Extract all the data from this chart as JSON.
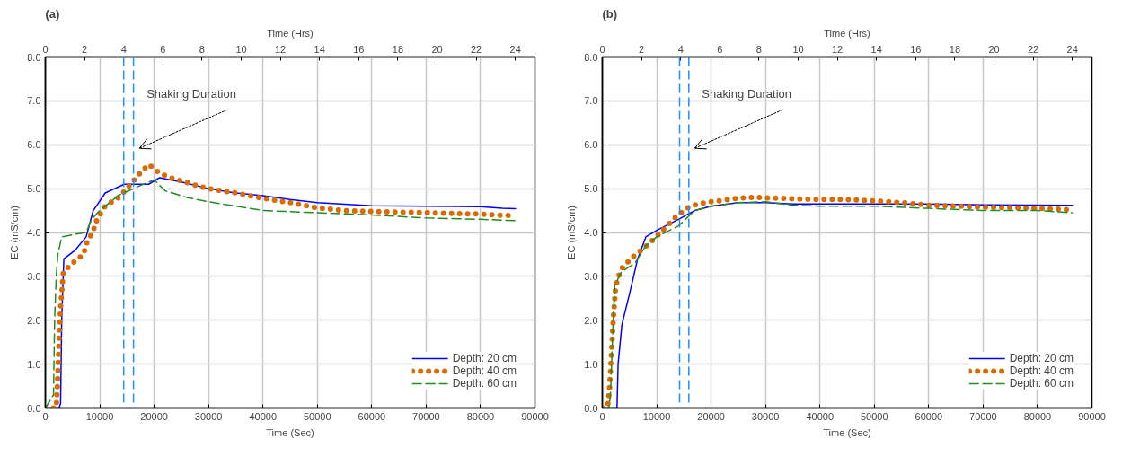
{
  "chart_data": [
    {
      "type": "line",
      "title": "(a)",
      "xlabel": "Time (Sec)",
      "x2label": "Time (Hrs)",
      "ylabel": "EC (mS/cm)",
      "xlim": [
        0,
        90000
      ],
      "xticks": [
        0,
        10000,
        20000,
        30000,
        40000,
        50000,
        60000,
        70000,
        80000,
        90000
      ],
      "x2lim": [
        0,
        25
      ],
      "x2ticks": [
        0,
        2,
        4,
        6,
        8,
        10,
        12,
        14,
        16,
        18,
        20,
        22,
        24
      ],
      "ylim": [
        0,
        8
      ],
      "yticks": [
        {
          "value": 0,
          "label": "0.0"
        },
        {
          "value": 1,
          "label": "1.0"
        },
        {
          "value": 2,
          "label": "2.0"
        },
        {
          "value": 3,
          "label": "3.0"
        },
        {
          "value": 4,
          "label": "4.0"
        },
        {
          "value": 5,
          "label": "5.0"
        },
        {
          "value": 6,
          "label": "6.0"
        },
        {
          "value": 7,
          "label": "7.0"
        },
        {
          "value": 8,
          "label": "8.0"
        }
      ],
      "grid": true,
      "legend": "bottom right",
      "ref_lines": [
        {
          "axis": "x",
          "value": 14400,
          "color": "#1e90ff",
          "line_style": "dashed"
        },
        {
          "axis": "x",
          "value": 16200,
          "color": "#1e90ff",
          "line_style": "dashed"
        }
      ],
      "annotations": [
        "Shaking Duration"
      ],
      "series": [
        {
          "name": "Depth: 20 cm",
          "color": "#0000ff",
          "line_style": "solid",
          "x": [
            0,
            2500,
            2800,
            3000,
            3400,
            5500,
            7500,
            8800,
            11000,
            14500,
            19000,
            21000,
            25000,
            30000,
            35000,
            40000,
            45000,
            50000,
            60000,
            70000,
            80000,
            84000,
            86400
          ],
          "values": [
            0,
            0,
            0.1,
            2.0,
            3.4,
            3.6,
            3.9,
            4.5,
            4.9,
            5.1,
            5.1,
            5.25,
            5.15,
            5.0,
            4.9,
            4.84,
            4.75,
            4.68,
            4.61,
            4.6,
            4.59,
            4.55,
            4.54
          ]
        },
        {
          "name": "Depth: 40 cm",
          "color": "#d96b00",
          "line_style": "dotted",
          "x": [
            0,
            2000,
            2200,
            2500,
            2800,
            3300,
            5000,
            7000,
            7700,
            8700,
            9500,
            11000,
            13500,
            15000,
            17000,
            19000,
            21000,
            23000,
            27000,
            30000,
            35000,
            40000,
            45000,
            50000,
            55000,
            60000,
            70000,
            80000,
            86000
          ],
          "values": [
            0,
            0,
            0.5,
            1.5,
            2.3,
            3.1,
            3.3,
            3.5,
            3.8,
            4.0,
            4.3,
            4.6,
            4.8,
            5.0,
            5.3,
            5.55,
            5.35,
            5.25,
            5.1,
            5.0,
            4.9,
            4.78,
            4.68,
            4.56,
            4.5,
            4.48,
            4.45,
            4.42,
            4.38
          ]
        },
        {
          "name": "Depth: 60 cm",
          "color": "#228b22",
          "line_style": "dashed",
          "x": [
            0,
            1500,
            1700,
            2000,
            2300,
            3000,
            5000,
            7500,
            8500,
            10000,
            13500,
            18000,
            20000,
            22000,
            26000,
            30000,
            35000,
            40000,
            50000,
            60000,
            70000,
            80000,
            86400
          ],
          "values": [
            0,
            0.3,
            2.0,
            3.0,
            3.5,
            3.9,
            3.95,
            4.0,
            4.3,
            4.5,
            4.85,
            5.1,
            5.2,
            4.95,
            4.8,
            4.7,
            4.6,
            4.5,
            4.45,
            4.4,
            4.33,
            4.3,
            4.27
          ]
        }
      ]
    },
    {
      "type": "line",
      "title": "(b)",
      "xlabel": "Time (Sec)",
      "x2label": "Time (Hrs)",
      "ylabel": "EC (mS/cm)",
      "xlim": [
        0,
        90000
      ],
      "xticks": [
        0,
        10000,
        20000,
        30000,
        40000,
        50000,
        60000,
        70000,
        80000,
        90000
      ],
      "x2lim": [
        0,
        25
      ],
      "x2ticks": [
        0,
        2,
        4,
        6,
        8,
        10,
        12,
        14,
        16,
        18,
        20,
        22,
        24
      ],
      "ylim": [
        0,
        8
      ],
      "yticks": [
        {
          "value": 0,
          "label": "0.0"
        },
        {
          "value": 1,
          "label": "1.0"
        },
        {
          "value": 2,
          "label": "2.0"
        },
        {
          "value": 3,
          "label": "3.0"
        },
        {
          "value": 4,
          "label": "4.0"
        },
        {
          "value": 5,
          "label": "5.0"
        },
        {
          "value": 6,
          "label": "6.0"
        },
        {
          "value": 7,
          "label": "7.0"
        },
        {
          "value": 8,
          "label": "8.0"
        }
      ],
      "grid": true,
      "legend": "bottom right",
      "ref_lines": [
        {
          "axis": "x",
          "value": 14200,
          "color": "#1e90ff",
          "line_style": "dashed"
        },
        {
          "axis": "x",
          "value": 15900,
          "color": "#1e90ff",
          "line_style": "dashed"
        }
      ],
      "annotations": [
        "Shaking Duration"
      ],
      "series": [
        {
          "name": "Depth: 20 cm",
          "color": "#0000ff",
          "line_style": "solid",
          "x": [
            0,
            2700,
            2900,
            3600,
            5000,
            6500,
            8000,
            10000,
            14000,
            17000,
            20000,
            25000,
            30000,
            35000,
            40000,
            50000,
            60000,
            70000,
            86400
          ],
          "values": [
            0,
            0,
            1.0,
            1.9,
            2.6,
            3.4,
            3.9,
            4.05,
            4.3,
            4.5,
            4.6,
            4.68,
            4.68,
            4.65,
            4.65,
            4.65,
            4.65,
            4.63,
            4.62
          ]
        },
        {
          "name": "Depth: 40 cm",
          "color": "#d96b00",
          "line_style": "dotted",
          "x": [
            0,
            1000,
            1300,
            1700,
            2000,
            2400,
            2800,
            3700,
            5700,
            7700,
            9500,
            11500,
            13500,
            15500,
            17500,
            20000,
            25000,
            28000,
            32000,
            40000,
            45000,
            50000,
            55000,
            60000,
            70000,
            80000,
            86000
          ],
          "values": [
            0,
            0.05,
            0.4,
            1.3,
            2.0,
            2.7,
            2.95,
            3.2,
            3.45,
            3.65,
            3.85,
            4.1,
            4.35,
            4.55,
            4.65,
            4.7,
            4.78,
            4.8,
            4.78,
            4.75,
            4.75,
            4.72,
            4.68,
            4.62,
            4.58,
            4.55,
            4.52
          ]
        },
        {
          "name": "Depth: 60 cm",
          "color": "#228b22",
          "line_style": "dashed",
          "x": [
            0,
            1200,
            1500,
            2000,
            2300,
            3500,
            6000,
            8000,
            10000,
            14000,
            17000,
            20000,
            25000,
            30000,
            35000,
            40000,
            50000,
            60000,
            70000,
            80000,
            86400
          ],
          "values": [
            0,
            0,
            0.3,
            2.0,
            2.8,
            3.1,
            3.3,
            3.7,
            3.9,
            4.15,
            4.5,
            4.6,
            4.68,
            4.7,
            4.62,
            4.6,
            4.6,
            4.55,
            4.5,
            4.5,
            4.45
          ]
        }
      ]
    }
  ]
}
